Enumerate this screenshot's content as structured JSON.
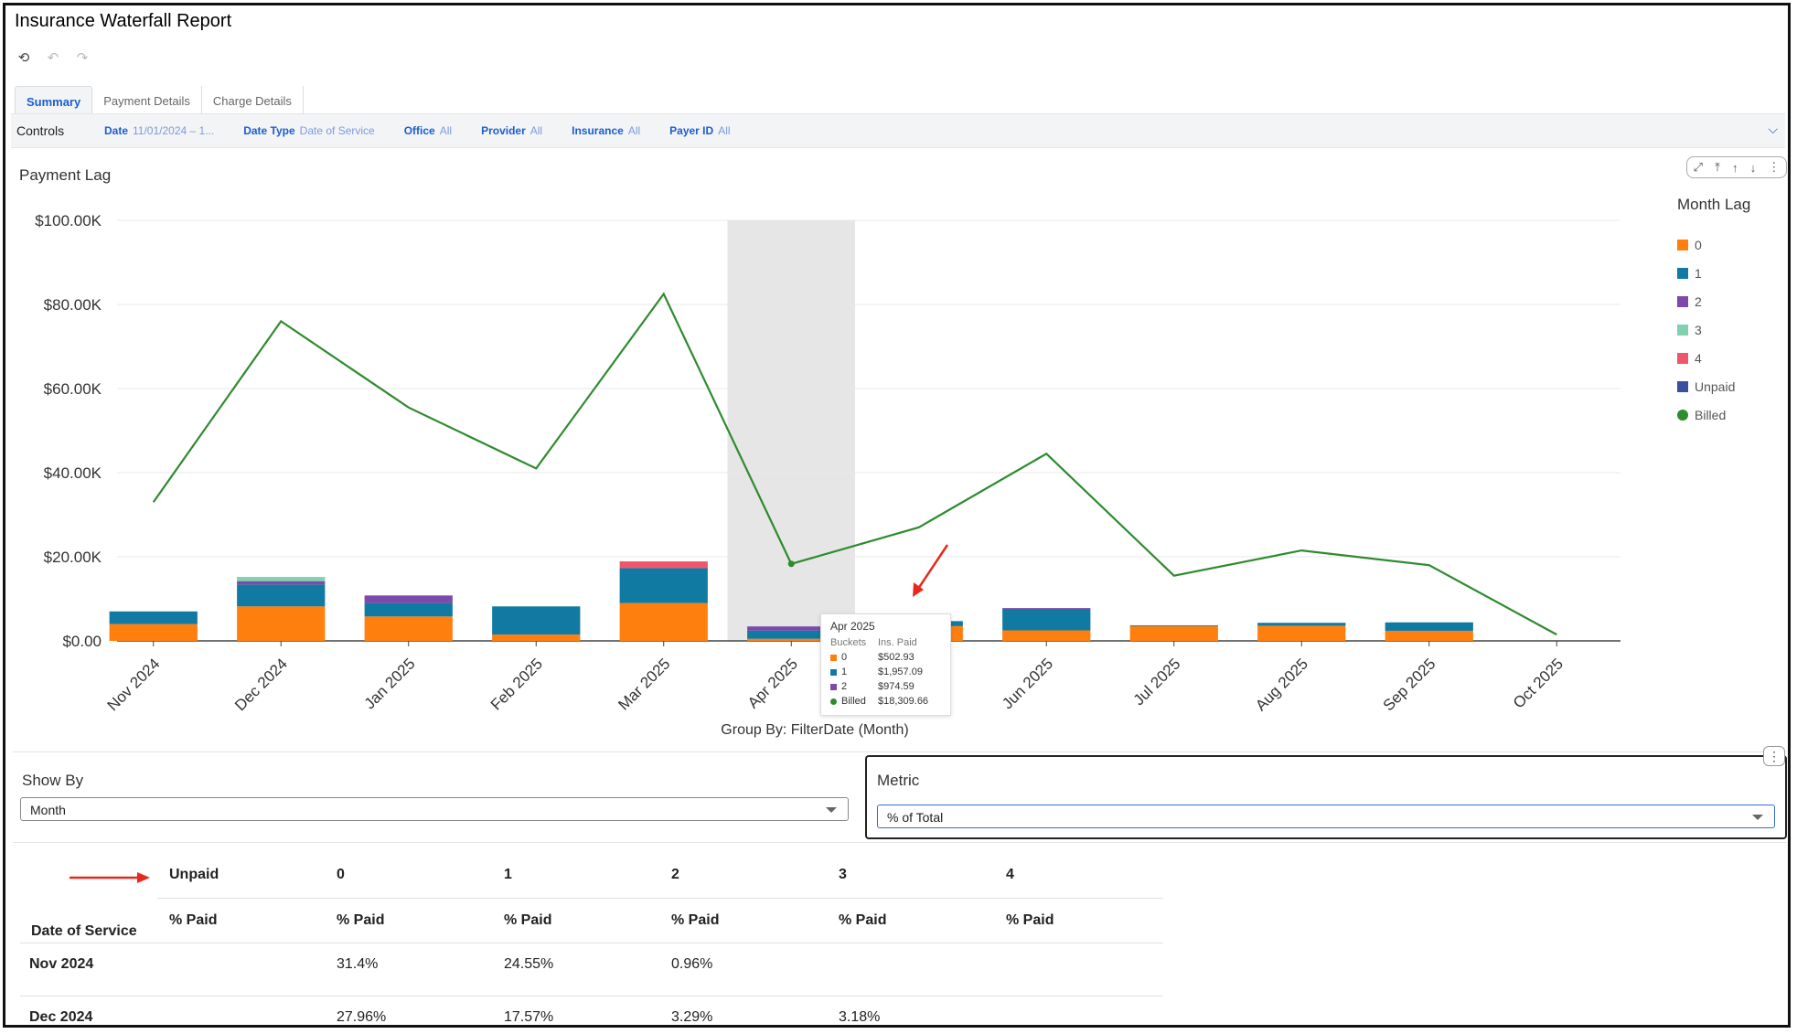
{
  "window": {
    "title": "Insurance Waterfall Report"
  },
  "toolbar": {
    "undo_icon": "rotate-ccw-icon",
    "back_icon": "undo-icon",
    "forward_icon": "redo-icon"
  },
  "tabs": [
    {
      "label": "Summary",
      "active": true
    },
    {
      "label": "Payment Details",
      "active": false
    },
    {
      "label": "Charge Details",
      "active": false
    }
  ],
  "controls": {
    "label": "Controls",
    "filters": [
      {
        "name": "Date",
        "value": "11/01/2024 – 1..."
      },
      {
        "name": "Date Type",
        "value": "Date of Service"
      },
      {
        "name": "Office",
        "value": "All"
      },
      {
        "name": "Provider",
        "value": "All"
      },
      {
        "name": "Insurance",
        "value": "All"
      },
      {
        "name": "Payer ID",
        "value": "All"
      }
    ]
  },
  "chart": {
    "title": "Payment Lag",
    "group_by": "Group By: FilterDate (Month)",
    "legend_title": "Month Lag",
    "tooltip": {
      "title": "Apr 2025",
      "col1": "Buckets",
      "col2": "Ins. Paid",
      "rows": [
        {
          "label": "0",
          "value": "$502.93"
        },
        {
          "label": "1",
          "value": "$1,957.09"
        },
        {
          "label": "2",
          "value": "$974.59"
        },
        {
          "label": "Billed",
          "value": "$18,309.66"
        }
      ]
    }
  },
  "chart_data": {
    "type": "bar",
    "stacked": true,
    "title": "Payment Lag",
    "xlabel": "Group By: FilterDate (Month)",
    "ylabel": "",
    "ylim": [
      0,
      100000
    ],
    "yticks": [
      "$0.00",
      "$20.00K",
      "$40.00K",
      "$60.00K",
      "$80.00K",
      "$100.00K"
    ],
    "categories": [
      "Nov 2024",
      "Dec 2024",
      "Jan 2025",
      "Feb 2025",
      "Mar 2025",
      "Apr 2025",
      "May 2025",
      "Jun 2025",
      "Jul 2025",
      "Aug 2025",
      "Sep 2025",
      "Oct 2025"
    ],
    "highlighted_category": "Apr 2025",
    "legend_position": "right",
    "series": [
      {
        "name": "0",
        "color": "#ff7f0e",
        "values": [
          4000,
          8200,
          5800,
          1500,
          9000,
          503,
          3500,
          2500,
          3500,
          3600,
          2400,
          0
        ]
      },
      {
        "name": "1",
        "color": "#117aa3",
        "values": [
          3000,
          5200,
          3200,
          6700,
          8300,
          1957,
          1200,
          5000,
          200,
          700,
          2000,
          0
        ]
      },
      {
        "name": "2",
        "color": "#7d4aab",
        "values": [
          0,
          800,
          1800,
          0,
          0,
          975,
          0,
          300,
          0,
          0,
          0,
          0
        ]
      },
      {
        "name": "3",
        "color": "#7fd1b0",
        "values": [
          0,
          1000,
          0,
          0,
          0,
          0,
          0,
          0,
          0,
          0,
          0,
          0
        ]
      },
      {
        "name": "4",
        "color": "#f0566b",
        "values": [
          0,
          0,
          0,
          0,
          1600,
          0,
          0,
          0,
          0,
          0,
          0,
          0
        ]
      },
      {
        "name": "Unpaid",
        "color": "#3a4fa0",
        "values": [
          0,
          0,
          0,
          0,
          0,
          0,
          0,
          0,
          0,
          0,
          0,
          0
        ]
      },
      {
        "name": "Billed",
        "type": "line",
        "color": "#2e8b2e",
        "values": [
          33000,
          76000,
          55500,
          41000,
          82500,
          18310,
          27000,
          44500,
          15500,
          21500,
          18000,
          1500
        ]
      }
    ]
  },
  "show_by": {
    "label": "Show By",
    "value": "Month"
  },
  "metric": {
    "label": "Metric",
    "value": "% of Total"
  },
  "table": {
    "group_headers": [
      "Unpaid",
      "0",
      "1",
      "2",
      "3",
      "4"
    ],
    "sub_header_first": "Date of Service",
    "sub_headers": [
      "% Paid",
      "% Paid",
      "% Paid",
      "% Paid",
      "% Paid",
      "% Paid"
    ],
    "rows": [
      {
        "date": "Nov 2024",
        "values": [
          "",
          "31.4%",
          "24.55%",
          "0.96%",
          "",
          ""
        ]
      },
      {
        "date": "Dec 2024",
        "values": [
          "",
          "27.96%",
          "17.57%",
          "3.29%",
          "3.18%",
          ""
        ]
      }
    ]
  }
}
